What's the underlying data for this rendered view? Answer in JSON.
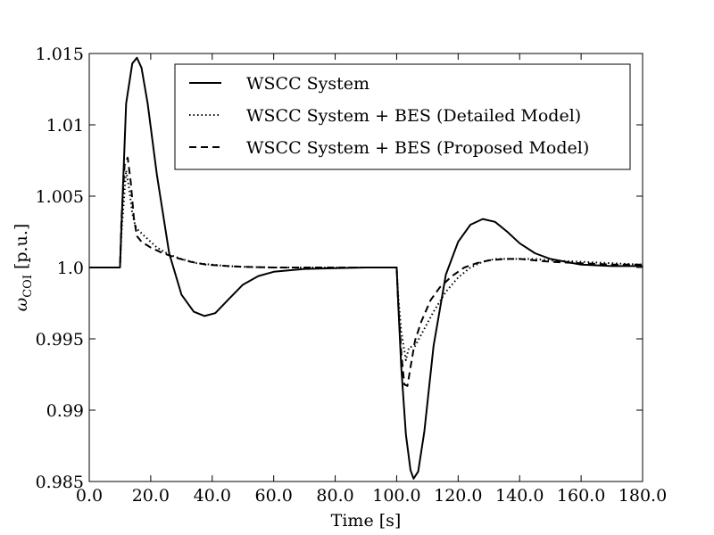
{
  "chart_data": {
    "type": "line",
    "xlabel": "Time [s]",
    "ylabel": {
      "symbol": "ω",
      "subscript": "COI",
      "unit": "[p.u.]"
    },
    "xlim": [
      0,
      180
    ],
    "ylim": [
      0.985,
      1.015
    ],
    "x_ticks": [
      0,
      20,
      40,
      60,
      80,
      100,
      120,
      140,
      160,
      180
    ],
    "x_tick_labels": [
      "0.0",
      "20.0",
      "40.0",
      "60.0",
      "80.0",
      "100.0",
      "120.0",
      "140.0",
      "160.0",
      "180.0"
    ],
    "y_ticks": [
      0.985,
      0.99,
      0.995,
      1.0,
      1.005,
      1.01,
      1.015
    ],
    "y_tick_labels": [
      "0.985",
      "0.99",
      "0.995",
      "1.0",
      "1.005",
      "1.01",
      "1.015"
    ],
    "grid": false,
    "legend_position": "top-right",
    "series": [
      {
        "name": "WSCC System",
        "style": "solid",
        "color": "#000000",
        "x": [
          0,
          10,
          10.5,
          12,
          14,
          15.5,
          17,
          19,
          22,
          26,
          30,
          34,
          37.5,
          41,
          45,
          50,
          55,
          60,
          70,
          80,
          90,
          100,
          100.5,
          101.5,
          103,
          104.5,
          105.5,
          107,
          109,
          112,
          116,
          120,
          124,
          128,
          132,
          136,
          140,
          145,
          150,
          160,
          170,
          180
        ],
        "y": [
          1.0,
          1.0,
          1.003,
          1.0115,
          1.0143,
          1.0147,
          1.014,
          1.0115,
          1.0065,
          1.001,
          0.9981,
          0.9969,
          0.9966,
          0.9968,
          0.9977,
          0.9988,
          0.9994,
          0.9997,
          0.9999,
          0.99995,
          1.0,
          1.0,
          0.9975,
          0.993,
          0.9883,
          0.9858,
          0.9852,
          0.9857,
          0.9885,
          0.9945,
          0.9995,
          1.0018,
          1.003,
          1.0034,
          1.0032,
          1.0025,
          1.0017,
          1.001,
          1.0006,
          1.0002,
          1.0001,
          1.0001
        ]
      },
      {
        "name": "WSCC System + BES (Detailed Model)",
        "style": "dotted",
        "color": "#000000",
        "x": [
          0,
          10,
          10.5,
          12,
          13,
          14,
          15,
          16,
          18,
          22,
          26,
          30,
          35,
          40,
          45,
          50,
          60,
          70,
          80,
          90,
          100,
          100.5,
          101.5,
          103,
          104,
          106,
          108,
          112,
          116,
          120,
          124,
          128,
          132,
          136,
          140,
          145,
          150,
          160,
          170,
          180
        ],
        "y": [
          1.0,
          1.0,
          1.0025,
          1.0068,
          1.0055,
          1.0038,
          1.0029,
          1.0026,
          1.0022,
          1.0014,
          1.0009,
          1.0006,
          1.0003,
          1.0002,
          1.0001,
          1.00005,
          1.0,
          1.0,
          1.0,
          1.0,
          1.0,
          0.998,
          0.9955,
          0.9935,
          0.9944,
          0.9945,
          0.9953,
          0.9969,
          0.9983,
          0.9993,
          1.0,
          1.0004,
          1.0006,
          1.0006,
          1.0006,
          1.0006,
          1.0005,
          1.0004,
          1.0003,
          1.0002
        ]
      },
      {
        "name": "WSCC System + BES (Proposed Model)",
        "style": "dashed",
        "color": "#000000",
        "x": [
          0,
          10,
          10.5,
          11.5,
          12.5,
          13.5,
          14.5,
          15.5,
          17,
          20,
          24,
          28,
          33,
          38,
          45,
          50,
          60,
          70,
          80,
          90,
          100,
          100.5,
          101.5,
          102.5,
          103.5,
          104.5,
          106,
          108,
          111,
          114,
          118,
          122,
          126,
          130,
          135,
          140,
          145,
          150,
          160,
          170,
          180
        ],
        "y": [
          1.0,
          1.0,
          1.0035,
          1.0072,
          1.0077,
          1.006,
          1.0035,
          1.0022,
          1.0018,
          1.0014,
          1.001,
          1.0007,
          1.0004,
          1.0002,
          1.0001,
          1.00005,
          1.0,
          1.0,
          1.0,
          1.0,
          1.0,
          0.9975,
          0.994,
          0.9918,
          0.9917,
          0.993,
          0.9949,
          0.9962,
          0.9977,
          0.9986,
          0.9994,
          1.0,
          1.0003,
          1.0005,
          1.0006,
          1.0006,
          1.0005,
          1.0004,
          1.0003,
          1.0002,
          1.0002
        ]
      }
    ],
    "legend": [
      {
        "label": "WSCC System",
        "style": "solid"
      },
      {
        "label": "WSCC System + BES (Detailed Model)",
        "style": "dotted"
      },
      {
        "label": "WSCC System + BES (Proposed Model)",
        "style": "dashed"
      }
    ]
  }
}
